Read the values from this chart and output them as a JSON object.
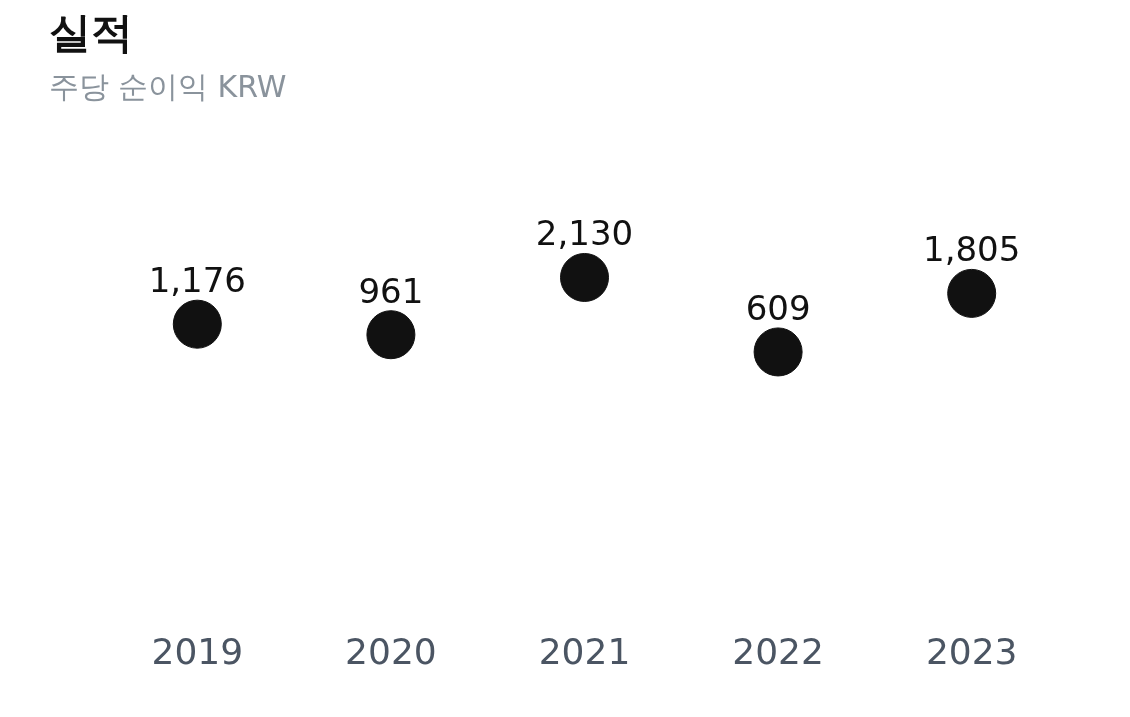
{
  "chart_data": {
    "type": "scatter",
    "title": "실적",
    "subtitle": "주당 순이익 KRW",
    "categories": [
      "2019",
      "2020",
      "2021",
      "2022",
      "2023"
    ],
    "values": [
      1176,
      961,
      2130,
      609,
      1805
    ],
    "value_labels": [
      "1,176",
      "961",
      "2,130",
      "609",
      "1,805"
    ],
    "color": "#111111",
    "marker": "circle",
    "grid": false
  }
}
